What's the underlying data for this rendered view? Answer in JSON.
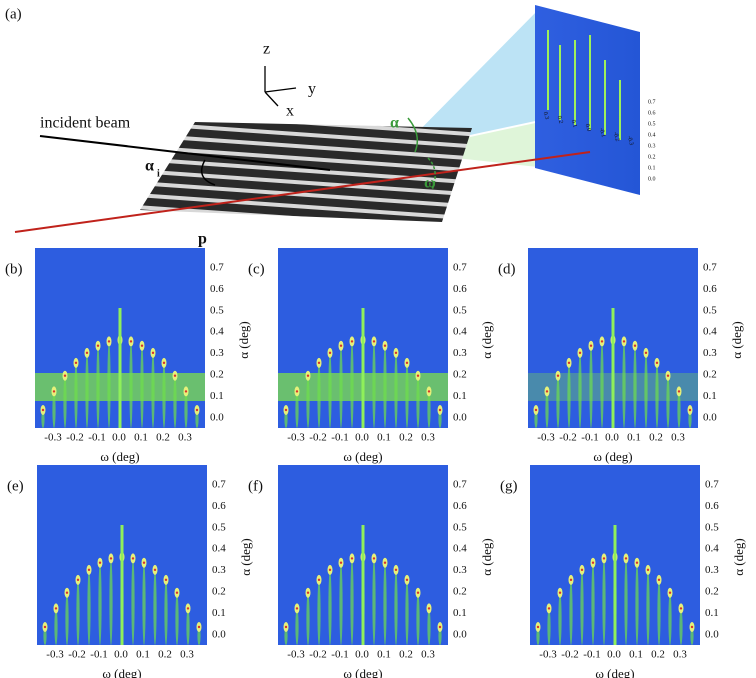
{
  "panel_a": {
    "label": "(a)",
    "beam_label": "incident beam",
    "axis_z": "z",
    "axis_y": "y",
    "axis_x": "x",
    "angle_alpha": "α",
    "angle_omega": "ω",
    "angle_alpha_i": "α",
    "angle_alpha_i_sub": "i",
    "period_label": "p",
    "detector_omega_ticks": [
      "0.3",
      "0.2",
      "0.1",
      "0.0",
      "-0.1",
      "-0.2",
      "-0.3"
    ],
    "detector_alpha_ticks": [
      "0.7",
      "0.6",
      "0.5",
      "0.4",
      "0.3",
      "0.2",
      "0.1",
      "0.0"
    ]
  },
  "panels": [
    {
      "label": "(b)",
      "xlabel": "ω (deg)",
      "ylabel": "α (deg)",
      "xticks": [
        "-0.3",
        "-0.2",
        "-0.1",
        "0.0",
        "0.1",
        "0.2",
        "0.3"
      ],
      "yticks": [
        "0.7",
        "0.6",
        "0.5",
        "0.4",
        "0.3",
        "0.2",
        "0.1",
        "0.0"
      ]
    },
    {
      "label": "(c)",
      "xlabel": "ω (deg)",
      "ylabel": "α (deg)",
      "xticks": [
        "-0.3",
        "-0.2",
        "-0.1",
        "0.0",
        "0.1",
        "0.2",
        "0.3"
      ],
      "yticks": [
        "0.7",
        "0.6",
        "0.5",
        "0.4",
        "0.3",
        "0.2",
        "0.1",
        "0.0"
      ]
    },
    {
      "label": "(d)",
      "xlabel": "ω (deg)",
      "ylabel": "α (deg)",
      "xticks": [
        "-0.3",
        "-0.2",
        "-0.1",
        "0.0",
        "0.1",
        "0.2",
        "0.3"
      ],
      "yticks": [
        "0.7",
        "0.6",
        "0.5",
        "0.4",
        "0.3",
        "0.2",
        "0.1",
        "0.0"
      ]
    },
    {
      "label": "(e)",
      "xlabel": "ω (deg)",
      "ylabel": "α (deg)",
      "xticks": [
        "-0.3",
        "-0.2",
        "-0.1",
        "0.0",
        "0.1",
        "0.2",
        "0.3"
      ],
      "yticks": [
        "0.7",
        "0.6",
        "0.5",
        "0.4",
        "0.3",
        "0.2",
        "0.1",
        "0.0"
      ]
    },
    {
      "label": "(f)",
      "xlabel": "ω (deg)",
      "ylabel": "α (deg)",
      "xticks": [
        "-0.3",
        "-0.2",
        "-0.1",
        "0.0",
        "0.1",
        "0.2",
        "0.3"
      ],
      "yticks": [
        "0.7",
        "0.6",
        "0.5",
        "0.4",
        "0.3",
        "0.2",
        "0.1",
        "0.0"
      ]
    },
    {
      "label": "(g)",
      "xlabel": "ω (deg)",
      "ylabel": "α (deg)",
      "xticks": [
        "-0.3",
        "-0.2",
        "-0.1",
        "0.0",
        "0.1",
        "0.2",
        "0.3"
      ],
      "yticks": [
        "0.7",
        "0.6",
        "0.5",
        "0.4",
        "0.3",
        "0.2",
        "0.1",
        "0.0"
      ]
    }
  ]
}
